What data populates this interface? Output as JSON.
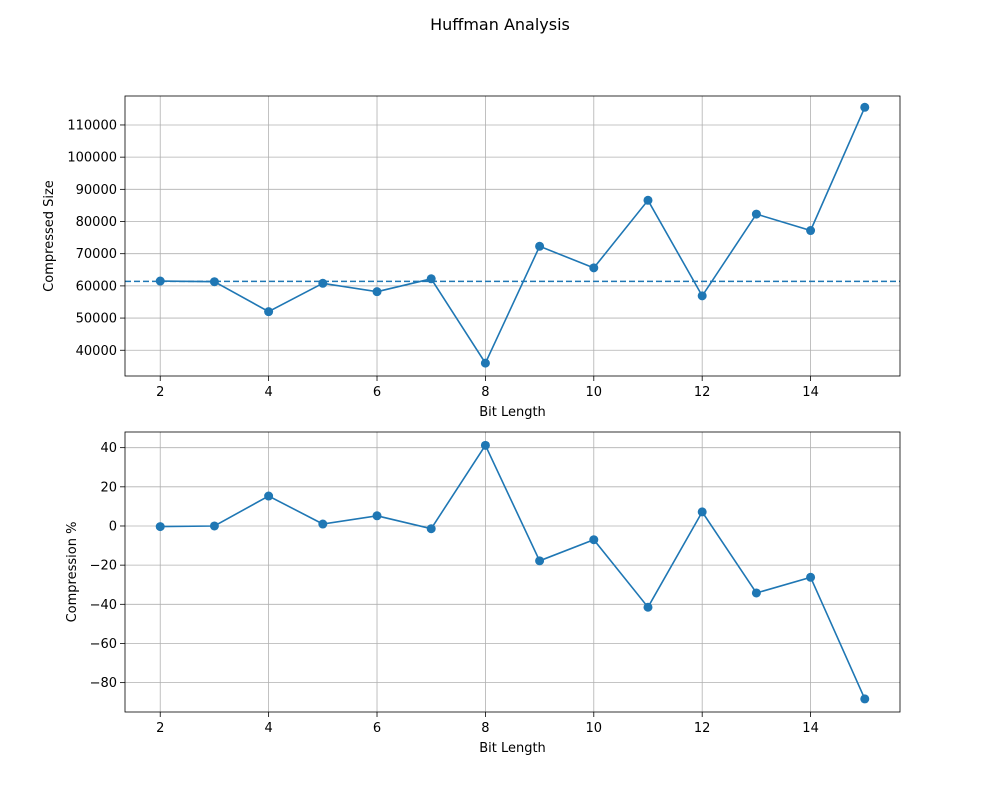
{
  "figure": {
    "title": "Huffman Analysis"
  },
  "chart_data": [
    {
      "type": "line",
      "title": "",
      "xlabel": "Bit Length",
      "ylabel": "Compressed Size",
      "xlim": [
        1.35,
        15.65
      ],
      "ylim": [
        32000,
        119000
      ],
      "xticks": [
        2,
        4,
        6,
        8,
        10,
        12,
        14
      ],
      "yticks": [
        40000,
        50000,
        60000,
        70000,
        80000,
        90000,
        100000,
        110000
      ],
      "grid": true,
      "x": [
        2,
        3,
        4,
        5,
        6,
        7,
        8,
        9,
        10,
        11,
        12,
        13,
        14,
        15
      ],
      "series": [
        {
          "values": [
            61500,
            61300,
            52000,
            60800,
            58200,
            62200,
            36000,
            72300,
            65600,
            86600,
            56900,
            82300,
            77200,
            115500
          ],
          "color": "#1f77b4",
          "marker": "circle"
        }
      ],
      "reference_line": {
        "y": 61400,
        "style": "dashed",
        "color": "#1f77b4"
      }
    },
    {
      "type": "line",
      "title": "",
      "xlabel": "Bit Length",
      "ylabel": "Compression %",
      "xlim": [
        1.35,
        15.65
      ],
      "ylim": [
        -95,
        48
      ],
      "xticks": [
        2,
        4,
        6,
        8,
        10,
        12,
        14
      ],
      "yticks": [
        -80,
        -60,
        -40,
        -20,
        0,
        20,
        40
      ],
      "grid": true,
      "x": [
        2,
        3,
        4,
        5,
        6,
        7,
        8,
        9,
        10,
        11,
        12,
        13,
        14,
        15
      ],
      "series": [
        {
          "values": [
            -0.3,
            0,
            15.3,
            1,
            5.2,
            -1.4,
            41.2,
            -17.8,
            -7,
            -41.5,
            7.2,
            -34.2,
            -26.2,
            -88.3
          ],
          "color": "#1f77b4",
          "marker": "circle"
        }
      ]
    }
  ]
}
